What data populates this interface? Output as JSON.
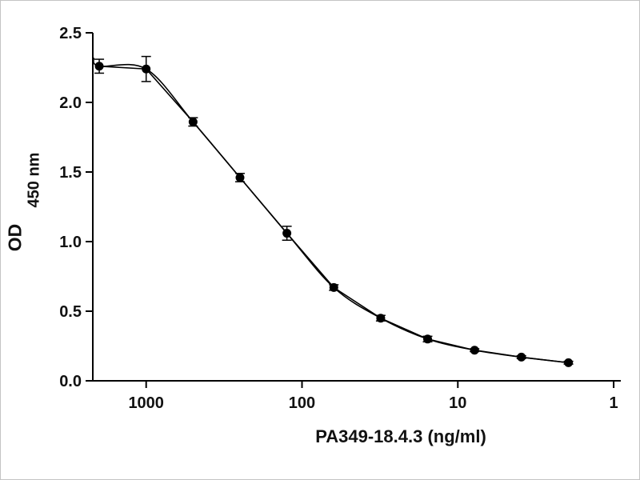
{
  "chart_data": {
    "type": "line",
    "title": "",
    "xlabel": "PA349-18.4.3 (ng/ml)",
    "ylabel_line1": "450 nm",
    "ylabel_line2": "OD",
    "x_scale": "log-reversed",
    "xlim": [
      2200,
      0.9
    ],
    "ylim": [
      0,
      2.5
    ],
    "xticks": [
      1000,
      100,
      10,
      1
    ],
    "xtick_labels": [
      "1000",
      "100",
      "10",
      "1"
    ],
    "yticks": [
      0,
      0.5,
      1,
      1.5,
      2,
      2.5
    ],
    "ytick_labels": [
      "0.0",
      "0.5",
      "1.0",
      "1.5",
      "2.0",
      "2.5"
    ],
    "grid": false,
    "legend": "none",
    "colors": {
      "line": "#000000",
      "marker": "#000000",
      "axis": "#000000"
    },
    "series": [
      {
        "name": "data",
        "marker": "filled-circle",
        "line": "straight",
        "x": [
          2000,
          1000,
          500,
          250,
          125,
          62.5,
          31.25,
          15.63,
          7.81,
          3.91,
          1.95
        ],
        "y": [
          2.26,
          2.24,
          1.86,
          1.46,
          1.06,
          0.67,
          0.45,
          0.3,
          0.22,
          0.17,
          0.13
        ],
        "yerr": [
          0.05,
          0.09,
          0.03,
          0.03,
          0.05,
          0.02,
          0.02,
          0.02,
          0.01,
          0.01,
          0.01
        ]
      },
      {
        "name": "fit",
        "marker": "none",
        "line": "smooth",
        "uses": "data"
      }
    ]
  }
}
